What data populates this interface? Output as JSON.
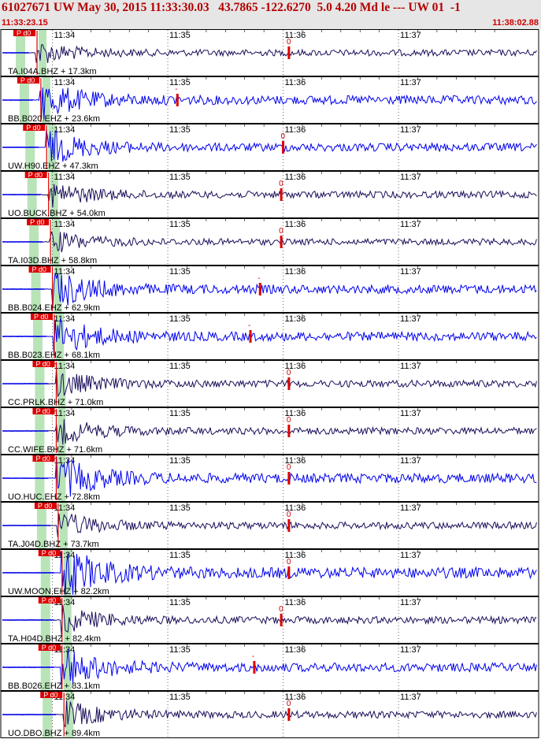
{
  "header": {
    "title": "61027671 UW May 30, 2015 11:33:30.03   43.7865 -122.6270  5.0 4.20 Md le --- UW 01  -1",
    "start_time": "11:33:23.15",
    "end_time": "11:38:02.88"
  },
  "time_axis": {
    "start_seconds": 3.15,
    "end_seconds": 282.88,
    "minute_marks": [
      {
        "label": "11:34",
        "seconds": 30
      },
      {
        "label": "11:35",
        "seconds": 90
      },
      {
        "label": "11:36",
        "seconds": 150
      },
      {
        "label": "11:37",
        "seconds": 210
      }
    ]
  },
  "pick_label": "P d0",
  "colors": {
    "trace_dark": "#1a0e5a",
    "trace_blue": "#0000ee",
    "pick_red": "#dd0000",
    "window_green": "#b8e4b8",
    "header_bg": "#e6e6e6"
  },
  "traces": [
    {
      "station": "TA.I04A.BHZ",
      "distance": "17.3km",
      "label": "TA.I04A.BHZ + 17.3km",
      "color": "dark",
      "p_sec": 22,
      "s_mark_sec": 153,
      "s_mark_label": "0",
      "amp": 0.5
    },
    {
      "station": "BB.B020.EHZ",
      "distance": "23.6km",
      "label": "BB.B020.EHZ + 23.6km",
      "color": "blue",
      "p_sec": 24,
      "s_mark_sec": 95,
      "s_mark_label": "-",
      "amp": 0.9
    },
    {
      "station": "UW.H90.EHZ",
      "distance": "47.3km",
      "label": "UW.H90.EHZ + 47.3km",
      "color": "blue",
      "p_sec": 27,
      "s_mark_sec": 150,
      "s_mark_label": "0",
      "amp": 0.8
    },
    {
      "station": "UO.BUCK.BHZ",
      "distance": "54.0km",
      "label": "UO.BUCK.BHZ + 54.0km",
      "color": "dark",
      "p_sec": 28,
      "s_mark_sec": 149,
      "s_mark_label": "0",
      "amp": 0.6
    },
    {
      "station": "TA.I03D.BHZ",
      "distance": "58.8km",
      "label": "TA.I03D.BHZ + 58.8km",
      "color": "dark",
      "p_sec": 29,
      "s_mark_sec": 149,
      "s_mark_label": "0",
      "amp": 0.5
    },
    {
      "station": "BB.B024.EHZ",
      "distance": "62.9km",
      "label": "BB.B024.EHZ + 62.9km",
      "color": "blue",
      "p_sec": 30,
      "s_mark_sec": 138,
      "s_mark_label": "-",
      "amp": 0.9
    },
    {
      "station": "BB.B023.EHZ",
      "distance": "68.1km",
      "label": "BB.B023.EHZ + 68.1km",
      "color": "blue",
      "p_sec": 31,
      "s_mark_sec": 133,
      "s_mark_label": "-",
      "amp": 0.9
    },
    {
      "station": "CC.PRLK.BHZ",
      "distance": "71.0km",
      "label": "CC.PRLK.BHZ + 71.0km",
      "color": "dark",
      "p_sec": 32,
      "s_mark_sec": 153,
      "s_mark_label": "0",
      "amp": 0.6
    },
    {
      "station": "CC.WIFE.BHZ",
      "distance": "71.6km",
      "label": "CC.WIFE.BHZ + 71.6km",
      "color": "dark",
      "p_sec": 32,
      "s_mark_sec": 153,
      "s_mark_label": "0",
      "amp": 0.6
    },
    {
      "station": "UO.HUC.EHZ",
      "distance": "72.8km",
      "label": "UO.HUC.EHZ + 72.8km",
      "color": "blue",
      "p_sec": 32,
      "s_mark_sec": 153,
      "s_mark_label": "0",
      "amp": 1.0
    },
    {
      "station": "TA.J04D.BHZ",
      "distance": "73.7km",
      "label": "TA.J04D.BHZ + 73.7km",
      "color": "dark",
      "p_sec": 33,
      "s_mark_sec": 153,
      "s_mark_label": "0",
      "amp": 0.6
    },
    {
      "station": "UW.MOON.EHZ",
      "distance": "82.2km",
      "label": "UW.MOON.EHZ + 82.2km",
      "color": "blue",
      "p_sec": 35,
      "s_mark_sec": 153,
      "s_mark_label": "0",
      "amp": 1.2
    },
    {
      "station": "TA.H04D.BHZ",
      "distance": "82.4km",
      "label": "TA.H04D.BHZ + 82.4km",
      "color": "dark",
      "p_sec": 35,
      "s_mark_sec": 149,
      "s_mark_label": "0",
      "amp": 0.6
    },
    {
      "station": "BB.B026.EHZ",
      "distance": "83.1km",
      "label": "BB.B026.EHZ + 83.1km",
      "color": "blue",
      "p_sec": 35,
      "s_mark_sec": 135,
      "s_mark_label": "-",
      "amp": 0.9
    },
    {
      "station": "UO.DBO.BHZ",
      "distance": "89.4km",
      "label": "UO.DBO.BHZ + 89.4km",
      "color": "dark",
      "p_sec": 36,
      "s_mark_sec": 153,
      "s_mark_label": "0",
      "amp": 0.6
    }
  ]
}
